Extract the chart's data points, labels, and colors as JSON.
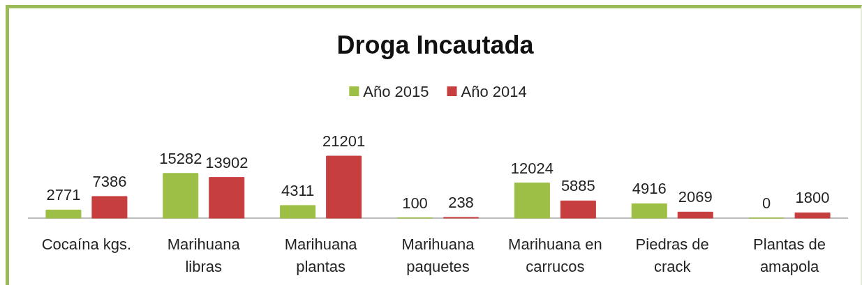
{
  "chart_data": {
    "type": "bar",
    "title": "Droga Incautada",
    "categories": [
      "Cocaína kgs.",
      "Marihuana libras",
      "Marihuana plantas",
      "Marihuana paquetes",
      "Marihuana en carrucos",
      "Piedras de crack",
      "Plantas de amapola"
    ],
    "series": [
      {
        "name": "Año 2015",
        "color": "#9dbf45",
        "values": [
          2771,
          15282,
          4311,
          100,
          12024,
          4916,
          0
        ]
      },
      {
        "name": "Año 2014",
        "color": "#c73e3e",
        "values": [
          7386,
          13902,
          21201,
          238,
          5885,
          2069,
          1800
        ]
      }
    ],
    "data_labels": true,
    "legend": "top",
    "tick_labels": "x"
  }
}
